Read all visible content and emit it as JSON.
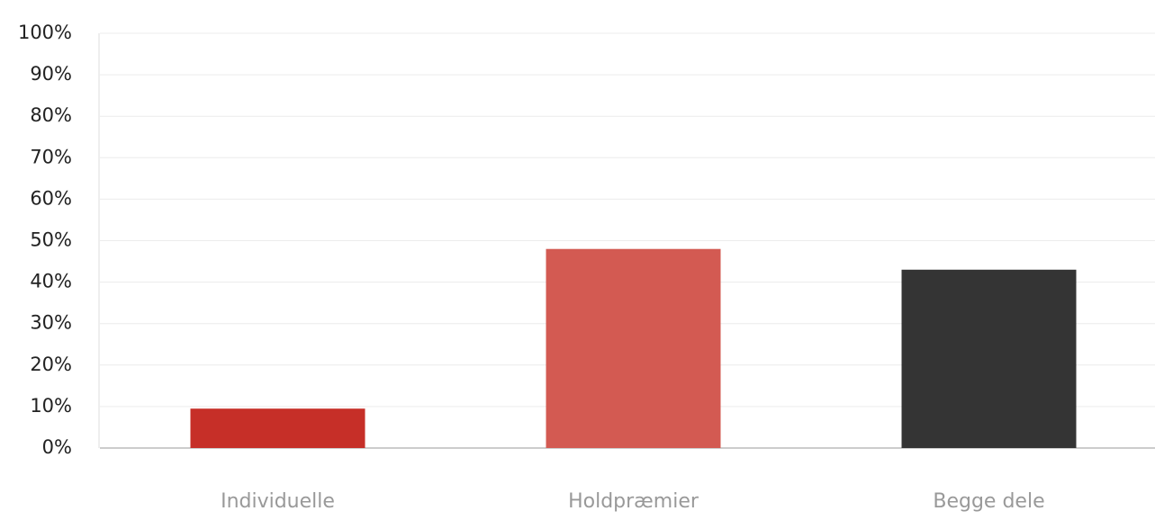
{
  "chart_data": {
    "type": "bar",
    "categories": [
      "Individuelle",
      "Holdpræmier",
      "Begge dele"
    ],
    "values": [
      9.5,
      48,
      43
    ],
    "colors": [
      "#c62f28",
      "#d35a52",
      "#343434"
    ],
    "ylim": [
      0,
      100
    ],
    "yticks": [
      {
        "value": 0,
        "label": "0%"
      },
      {
        "value": 10,
        "label": "10%"
      },
      {
        "value": 20,
        "label": "20%"
      },
      {
        "value": 30,
        "label": "30%"
      },
      {
        "value": 40,
        "label": "40%"
      },
      {
        "value": 50,
        "label": "50%"
      },
      {
        "value": 60,
        "label": "60%"
      },
      {
        "value": 70,
        "label": "70%"
      },
      {
        "value": 80,
        "label": "80%"
      },
      {
        "value": 90,
        "label": "90%"
      },
      {
        "value": 100,
        "label": "100%"
      }
    ],
    "grid": true
  }
}
